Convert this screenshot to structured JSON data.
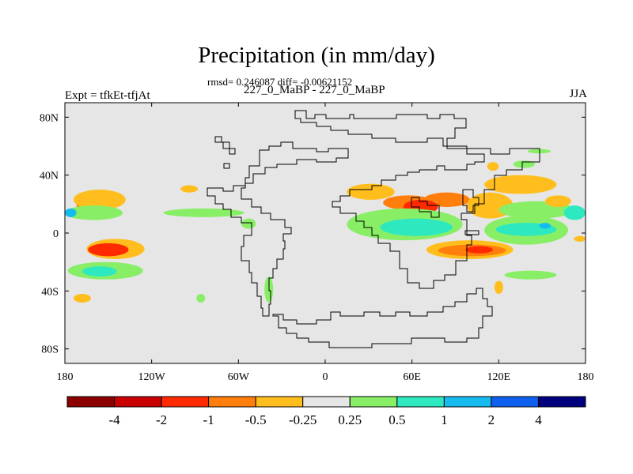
{
  "header": {
    "title": "Precipitation (in mm/day)",
    "stats": "rmsd= 0.246087 diff= -0.00621152",
    "cases": "227_0_MaBP - 227_0_MaBP",
    "experiment": "Expt = tfkEt-tfjAt",
    "season": "JJA"
  },
  "chart_data": {
    "type": "heatmap",
    "title": "Precipitation (in mm/day)",
    "projection": "cylindrical equidistant",
    "xlim": [
      -180,
      180
    ],
    "ylim": [
      -90,
      90
    ],
    "x_ticks": [
      {
        "value": -180,
        "label": "180"
      },
      {
        "value": -120,
        "label": "120W"
      },
      {
        "value": -60,
        "label": "60W"
      },
      {
        "value": 0,
        "label": "0"
      },
      {
        "value": 60,
        "label": "60E"
      },
      {
        "value": 120,
        "label": "120E"
      },
      {
        "value": 180,
        "label": "180"
      }
    ],
    "y_ticks": [
      {
        "value": 80,
        "label": "80N"
      },
      {
        "value": 40,
        "label": "40N"
      },
      {
        "value": 0,
        "label": "0"
      },
      {
        "value": -40,
        "label": "40S"
      },
      {
        "value": -80,
        "label": "80S"
      }
    ],
    "background_color": "#e6e6e6",
    "colorbar": {
      "colors": [
        "#8c0000",
        "#c80000",
        "#ff2a00",
        "#ff7e0c",
        "#ffbe1e",
        "#e6e6e6",
        "#88ee66",
        "#2ee8c0",
        "#16bcf0",
        "#1060f0",
        "#00007e"
      ],
      "tick_labels": [
        "-4",
        "-2",
        "-1",
        "-0.5",
        "-0.25",
        "0.25",
        "0.5",
        "1",
        "2",
        "4"
      ]
    },
    "anomaly_regions": [
      {
        "level": 3,
        "lon": [
          -172,
          -148
        ],
        "lat": [
          14,
          24
        ]
      },
      {
        "level": 4,
        "lon": [
          -174,
          -138
        ],
        "lat": [
          16,
          30
        ]
      },
      {
        "level": 4,
        "lon": [
          -165,
          -125
        ],
        "lat": [
          -18,
          -4
        ]
      },
      {
        "level": 2,
        "lon": [
          -164,
          -136
        ],
        "lat": [
          -16,
          -7
        ]
      },
      {
        "level": 6,
        "lon": [
          -180,
          -140
        ],
        "lat": [
          9,
          19
        ]
      },
      {
        "level": 8,
        "lon": [
          -180,
          -172
        ],
        "lat": [
          11,
          17
        ]
      },
      {
        "level": 6,
        "lon": [
          -178,
          -126
        ],
        "lat": [
          -32,
          -20
        ]
      },
      {
        "level": 7,
        "lon": [
          -168,
          -144
        ],
        "lat": [
          -30,
          -23
        ]
      },
      {
        "level": 4,
        "lon": [
          -174,
          -162
        ],
        "lat": [
          -48,
          -42
        ]
      },
      {
        "level": 4,
        "lon": [
          -100,
          -88
        ],
        "lat": [
          28,
          33
        ]
      },
      {
        "level": 6,
        "lon": [
          -112,
          -56
        ],
        "lat": [
          11,
          17
        ]
      },
      {
        "level": 6,
        "lon": [
          -58,
          -48
        ],
        "lat": [
          3,
          10
        ]
      },
      {
        "level": 6,
        "lon": [
          -42,
          -36
        ],
        "lat": [
          -48,
          -30
        ]
      },
      {
        "level": 6,
        "lon": [
          -89,
          -83
        ],
        "lat": [
          -48,
          -42
        ]
      },
      {
        "level": 4,
        "lon": [
          15,
          48
        ],
        "lat": [
          23,
          34
        ]
      },
      {
        "level": 3,
        "lon": [
          40,
          75
        ],
        "lat": [
          16,
          26
        ]
      },
      {
        "level": 3,
        "lon": [
          68,
          100
        ],
        "lat": [
          18,
          28
        ]
      },
      {
        "level": 2,
        "lon": [
          54,
          78
        ],
        "lat": [
          13,
          23
        ]
      },
      {
        "level": 6,
        "lon": [
          15,
          95
        ],
        "lat": [
          -5,
          17
        ]
      },
      {
        "level": 7,
        "lon": [
          38,
          88
        ],
        "lat": [
          -2,
          10
        ]
      },
      {
        "level": 4,
        "lon": [
          98,
          130
        ],
        "lat": [
          10,
          28
        ]
      },
      {
        "level": 6,
        "lon": [
          120,
          172
        ],
        "lat": [
          10,
          22
        ]
      },
      {
        "level": 4,
        "lon": [
          152,
          170
        ],
        "lat": [
          18,
          26
        ]
      },
      {
        "level": 7,
        "lon": [
          165,
          180
        ],
        "lat": [
          9,
          19
        ]
      },
      {
        "level": 6,
        "lon": [
          110,
          168
        ],
        "lat": [
          -8,
          12
        ]
      },
      {
        "level": 7,
        "lon": [
          118,
          160
        ],
        "lat": [
          -2,
          7
        ]
      },
      {
        "level": 8,
        "lon": [
          148,
          156
        ],
        "lat": [
          3,
          7
        ]
      },
      {
        "level": 4,
        "lon": [
          70,
          130
        ],
        "lat": [
          -18,
          -5
        ]
      },
      {
        "level": 3,
        "lon": [
          78,
          125
        ],
        "lat": [
          -16,
          -8
        ]
      },
      {
        "level": 2,
        "lon": [
          97,
          116
        ],
        "lat": [
          -14,
          -9
        ]
      },
      {
        "level": 6,
        "lon": [
          124,
          160
        ],
        "lat": [
          -32,
          -26
        ]
      },
      {
        "level": 4,
        "lon": [
          117,
          123
        ],
        "lat": [
          -42,
          -33
        ]
      },
      {
        "level": 6,
        "lon": [
          140,
          156
        ],
        "lat": [
          55,
          58
        ]
      },
      {
        "level": 4,
        "lon": [
          112,
          120
        ],
        "lat": [
          43,
          49
        ]
      },
      {
        "level": 6,
        "lon": [
          130,
          145
        ],
        "lat": [
          45,
          50
        ]
      },
      {
        "level": 4,
        "lon": [
          110,
          160
        ],
        "lat": [
          27,
          40
        ]
      },
      {
        "level": 4,
        "lon": [
          172,
          180
        ],
        "lat": [
          -6,
          -2
        ]
      }
    ]
  }
}
